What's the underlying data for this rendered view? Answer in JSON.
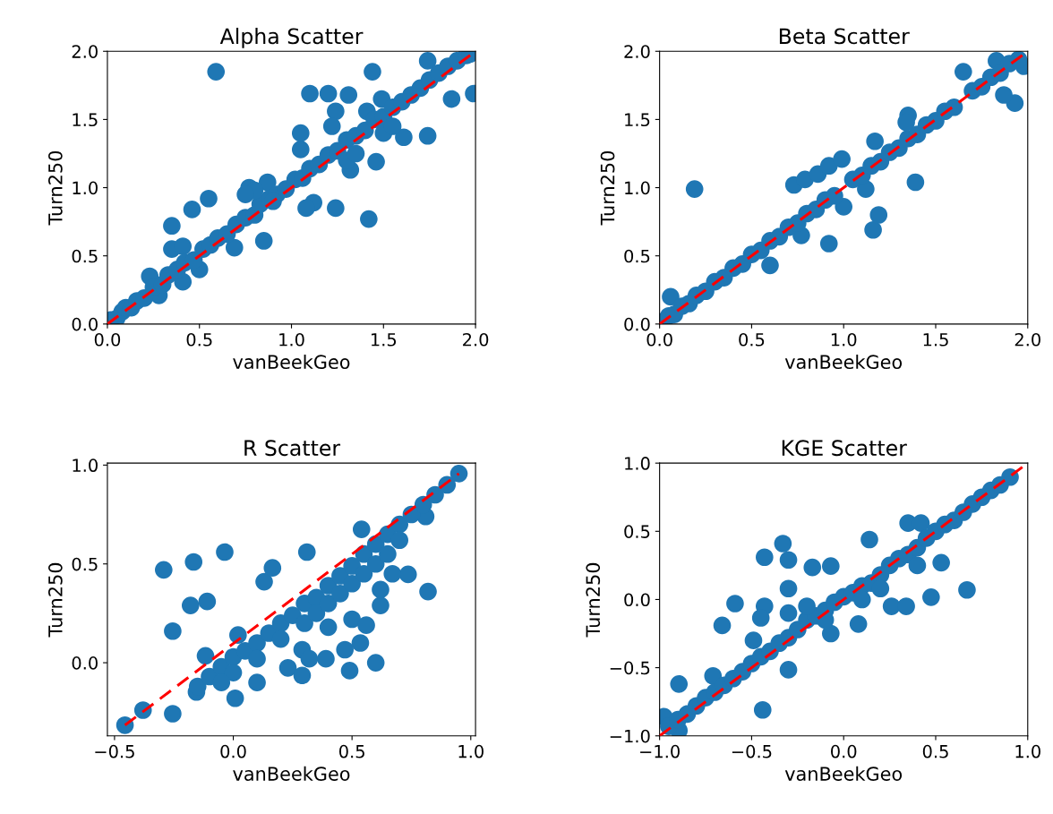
{
  "chart_data": [
    {
      "type": "scatter",
      "title": "Alpha Scatter",
      "xlabel": "vanBeekGeo",
      "ylabel": "Turn250",
      "marker": "circle",
      "xlim": [
        0,
        2
      ],
      "ylim": [
        0,
        2
      ],
      "xticks": [
        {
          "value": 0,
          "label": "0.0"
        },
        {
          "value": 0.5,
          "label": "0.5"
        },
        {
          "value": 1,
          "label": "1.0"
        },
        {
          "value": 1.5,
          "label": "1.5"
        },
        {
          "value": 2,
          "label": "2.0"
        }
      ],
      "yticks": [
        {
          "value": 0,
          "label": "0.0"
        },
        {
          "value": 0.5,
          "label": "0.5"
        },
        {
          "value": 1,
          "label": "1.0"
        },
        {
          "value": 1.5,
          "label": "1.5"
        },
        {
          "value": 2,
          "label": "2.0"
        }
      ],
      "series": [
        {
          "color": "#1f77b4",
          "x": [
            0.59,
            1.44,
            1.74,
            1.1,
            1.2,
            1.31,
            1.24,
            1.22,
            1.05,
            1.05,
            1.46,
            1.42,
            1.24,
            1.12,
            1.08,
            0.35,
            0.46,
            0.55,
            0.35,
            0.41,
            0.23,
            0.5,
            0.41,
            0.28,
            0.69,
            0.85,
            0.77,
            0.87,
            1.74,
            1.61,
            1.87,
            1.99,
            1.49,
            1.32,
            1.41,
            0.02,
            0.05,
            0.08,
            0.1,
            0.13,
            0.16,
            0.2,
            0.25,
            0.3,
            0.33,
            0.38,
            0.42,
            0.47,
            0.52,
            0.56,
            0.6,
            0.65,
            0.7,
            0.75,
            0.8,
            0.83,
            0.88,
            0.92,
            0.97,
            1.02,
            1.06,
            1.1,
            1.15,
            1.2,
            1.25,
            1.3,
            1.35,
            1.4,
            1.45,
            1.5,
            1.55,
            1.6,
            1.65,
            1.7,
            1.75,
            1.8,
            1.85,
            1.9,
            1.95,
            1.97,
            0.8,
            0.75,
            0.9,
            1.3,
            1.35,
            1.5,
            1.55
          ],
          "values": [
            1.85,
            1.85,
            1.93,
            1.69,
            1.69,
            1.68,
            1.56,
            1.45,
            1.4,
            1.28,
            1.19,
            0.77,
            0.85,
            0.89,
            0.85,
            0.72,
            0.84,
            0.92,
            0.55,
            0.57,
            0.35,
            0.4,
            0.31,
            0.21,
            0.56,
            0.61,
            1.0,
            1.04,
            1.38,
            1.37,
            1.65,
            1.69,
            1.65,
            1.13,
            1.56,
            0.03,
            0.04,
            0.09,
            0.12,
            0.12,
            0.17,
            0.19,
            0.27,
            0.29,
            0.36,
            0.4,
            0.45,
            0.47,
            0.55,
            0.58,
            0.63,
            0.66,
            0.73,
            0.78,
            0.8,
            0.88,
            0.92,
            0.95,
            0.99,
            1.06,
            1.07,
            1.14,
            1.17,
            1.24,
            1.27,
            1.35,
            1.38,
            1.42,
            1.5,
            1.52,
            1.59,
            1.63,
            1.68,
            1.73,
            1.79,
            1.84,
            1.89,
            1.93,
            1.97,
            1.98,
            0.98,
            0.95,
            0.9,
            1.2,
            1.25,
            1.4,
            1.45
          ]
        },
        {
          "type": "line",
          "color": "#ff0000",
          "line_style": "dashed",
          "marker": "none",
          "x": [
            0,
            2
          ],
          "values": [
            0,
            2
          ]
        }
      ]
    },
    {
      "type": "scatter",
      "title": "Beta Scatter",
      "xlabel": "vanBeekGeo",
      "ylabel": "Turn250",
      "marker": "circle",
      "xlim": [
        0,
        2
      ],
      "ylim": [
        0,
        2
      ],
      "xticks": [
        {
          "value": 0,
          "label": "0.0"
        },
        {
          "value": 0.5,
          "label": "0.5"
        },
        {
          "value": 1,
          "label": "1.0"
        },
        {
          "value": 1.5,
          "label": "1.5"
        },
        {
          "value": 2,
          "label": "2.0"
        }
      ],
      "yticks": [
        {
          "value": 0,
          "label": "0.0"
        },
        {
          "value": 0.5,
          "label": "0.5"
        },
        {
          "value": 1,
          "label": "1.0"
        },
        {
          "value": 1.5,
          "label": "1.5"
        },
        {
          "value": 2,
          "label": "2.0"
        }
      ],
      "series": [
        {
          "color": "#1f77b4",
          "x": [
            0.19,
            0.92,
            1.16,
            1.19,
            1.39,
            1.17,
            1.35,
            1.65,
            1.93,
            1.98,
            1.83,
            0.73,
            0.79,
            0.86,
            0.92,
            0.99,
            0.6,
            0.06,
            0.77,
            1.12,
            1.0,
            1.87,
            0.02,
            0.05,
            0.08,
            0.12,
            0.16,
            0.2,
            0.25,
            0.3,
            0.35,
            0.4,
            0.45,
            0.5,
            0.55,
            0.6,
            0.65,
            0.7,
            0.75,
            0.8,
            0.85,
            0.9,
            0.95,
            1.05,
            1.1,
            1.15,
            1.2,
            1.25,
            1.3,
            1.35,
            1.4,
            1.45,
            1.5,
            1.55,
            1.6,
            1.7,
            1.75,
            1.8,
            1.85,
            1.9,
            1.95,
            1.34
          ],
          "values": [
            0.99,
            0.59,
            0.69,
            0.8,
            1.04,
            1.34,
            1.53,
            1.85,
            1.62,
            1.89,
            1.93,
            1.02,
            1.06,
            1.1,
            1.16,
            1.21,
            0.43,
            0.2,
            0.65,
            0.99,
            0.86,
            1.68,
            0.02,
            0.06,
            0.07,
            0.13,
            0.15,
            0.21,
            0.24,
            0.31,
            0.34,
            0.41,
            0.44,
            0.51,
            0.54,
            0.61,
            0.64,
            0.71,
            0.74,
            0.81,
            0.84,
            0.91,
            0.94,
            1.06,
            1.09,
            1.16,
            1.19,
            1.26,
            1.29,
            1.36,
            1.39,
            1.46,
            1.49,
            1.56,
            1.59,
            1.71,
            1.74,
            1.81,
            1.84,
            1.91,
            1.94,
            1.48
          ]
        },
        {
          "type": "line",
          "color": "#ff0000",
          "line_style": "dashed",
          "marker": "none",
          "x": [
            0,
            2
          ],
          "values": [
            0,
            2
          ]
        }
      ]
    },
    {
      "type": "scatter",
      "title": "R Scatter",
      "xlabel": "vanBeekGeo",
      "ylabel": "Turn250",
      "marker": "circle",
      "xlim": [
        -0.53,
        1.02
      ],
      "ylim": [
        -0.37,
        1.01
      ],
      "xticks": [
        {
          "value": -0.5,
          "label": "−0.5"
        },
        {
          "value": 0,
          "label": "0.0"
        },
        {
          "value": 0.5,
          "label": "0.5"
        },
        {
          "value": 1,
          "label": "1.0"
        }
      ],
      "yticks": [
        {
          "value": 0,
          "label": "0.0"
        },
        {
          "value": 0.5,
          "label": "0.5"
        },
        {
          "value": 1,
          "label": "1.0"
        }
      ],
      "series": [
        {
          "color": "#1f77b4",
          "x": [
            -0.456,
            -0.38,
            -0.255,
            -0.293,
            -0.167,
            -0.036,
            -0.18,
            -0.11,
            -0.255,
            0.008,
            0.1,
            0.23,
            0.29,
            0.29,
            0.32,
            0.39,
            0.47,
            0.49,
            0.535,
            0.6,
            0.736,
            0.82,
            0.95,
            0.13,
            0.165,
            0.31,
            0.54,
            0.4,
            0.5,
            0.56,
            0.62,
            0.62,
            0.67,
            0.81,
            -0.117,
            -0.155,
            0.02,
            -0.15,
            -0.1,
            -0.05,
            0.0,
            0.05,
            0.1,
            0.15,
            0.2,
            0.25,
            0.3,
            0.35,
            0.4,
            0.45,
            0.5,
            0.55,
            0.6,
            0.65,
            0.7,
            0.75,
            0.8,
            0.85,
            0.9,
            0.2,
            0.3,
            0.35,
            0.4,
            0.45,
            0.5,
            0.55,
            0.6,
            0.65,
            0.7,
            0.1,
            0.0,
            -0.05
          ],
          "values": [
            -0.316,
            -0.24,
            -0.258,
            0.47,
            0.51,
            0.56,
            0.29,
            0.31,
            0.16,
            -0.18,
            -0.1,
            -0.026,
            -0.064,
            0.066,
            0.02,
            0.02,
            0.066,
            -0.04,
            0.1,
            0.0,
            0.447,
            0.36,
            0.957,
            0.41,
            0.48,
            0.56,
            0.675,
            0.18,
            0.22,
            0.19,
            0.29,
            0.37,
            0.45,
            0.74,
            0.035,
            -0.148,
            0.14,
            -0.12,
            -0.07,
            -0.02,
            0.03,
            0.06,
            0.1,
            0.15,
            0.2,
            0.24,
            0.3,
            0.33,
            0.39,
            0.44,
            0.49,
            0.55,
            0.6,
            0.65,
            0.7,
            0.75,
            0.8,
            0.85,
            0.9,
            0.12,
            0.2,
            0.25,
            0.3,
            0.35,
            0.4,
            0.45,
            0.5,
            0.55,
            0.62,
            0.02,
            -0.05,
            -0.1
          ]
        },
        {
          "type": "line",
          "color": "#ff0000",
          "line_style": "dashed",
          "marker": "none",
          "x": [
            -0.456,
            0.95
          ],
          "values": [
            -0.316,
            0.957
          ]
        }
      ]
    },
    {
      "type": "scatter",
      "title": "KGE Scatter",
      "xlabel": "vanBeekGeo",
      "ylabel": "Turn250",
      "marker": "circle",
      "xlim": [
        -1,
        1
      ],
      "ylim": [
        -1,
        1
      ],
      "xticks": [
        {
          "value": -1,
          "label": "−1.0"
        },
        {
          "value": -0.5,
          "label": "−0.5"
        },
        {
          "value": 0,
          "label": "0.0"
        },
        {
          "value": 0.5,
          "label": "0.5"
        },
        {
          "value": 1,
          "label": "1.0"
        }
      ],
      "yticks": [
        {
          "value": -1,
          "label": "−1.0"
        },
        {
          "value": -0.5,
          "label": "−0.5"
        },
        {
          "value": 0,
          "label": "0.0"
        },
        {
          "value": 0.5,
          "label": "0.5"
        },
        {
          "value": 1,
          "label": "1.0"
        }
      ],
      "series": [
        {
          "color": "#1f77b4",
          "x": [
            0.904,
            -0.44,
            -0.895,
            -0.71,
            -0.66,
            -0.59,
            -0.43,
            -0.33,
            -0.3,
            -0.17,
            -0.07,
            -0.3,
            -0.43,
            -0.45,
            -0.3,
            -0.49,
            0.14,
            0.35,
            0.42,
            0.53,
            0.475,
            0.67,
            0.26,
            0.34,
            0.08,
            -0.07,
            -0.976,
            -0.895,
            -0.95,
            -0.9,
            -0.85,
            -0.8,
            -0.75,
            -0.7,
            -0.65,
            -0.6,
            -0.55,
            -0.5,
            -0.45,
            -0.4,
            -0.35,
            -0.3,
            -0.25,
            -0.2,
            -0.15,
            -0.1,
            -0.05,
            0.0,
            0.05,
            0.1,
            0.15,
            0.2,
            0.25,
            0.3,
            0.35,
            0.4,
            0.45,
            0.5,
            0.55,
            0.6,
            0.65,
            0.7,
            0.75,
            0.8,
            0.85,
            -0.2,
            -0.1,
            0.1,
            0.2,
            0.4,
            -0.3
          ],
          "values": [
            0.898,
            -0.81,
            -0.62,
            -0.56,
            -0.19,
            -0.03,
            0.31,
            0.41,
            0.29,
            0.235,
            0.245,
            0.08,
            -0.05,
            -0.135,
            -0.515,
            -0.3,
            0.44,
            0.56,
            0.56,
            0.27,
            0.017,
            0.07,
            -0.05,
            -0.05,
            -0.18,
            -0.25,
            -0.86,
            -0.96,
            -0.93,
            -0.88,
            -0.84,
            -0.78,
            -0.72,
            -0.68,
            -0.63,
            -0.58,
            -0.53,
            -0.47,
            -0.42,
            -0.38,
            -0.32,
            -0.28,
            -0.22,
            -0.15,
            -0.12,
            -0.08,
            -0.02,
            0.02,
            0.05,
            0.1,
            0.12,
            0.18,
            0.25,
            0.3,
            0.33,
            0.38,
            0.45,
            0.5,
            0.55,
            0.58,
            0.64,
            0.7,
            0.75,
            0.8,
            0.84,
            -0.05,
            -0.15,
            0.0,
            0.08,
            0.25,
            -0.1
          ]
        },
        {
          "type": "line",
          "color": "#ff0000",
          "line_style": "dashed",
          "marker": "none",
          "x": [
            -1,
            1
          ],
          "values": [
            -1,
            1
          ]
        }
      ]
    }
  ]
}
